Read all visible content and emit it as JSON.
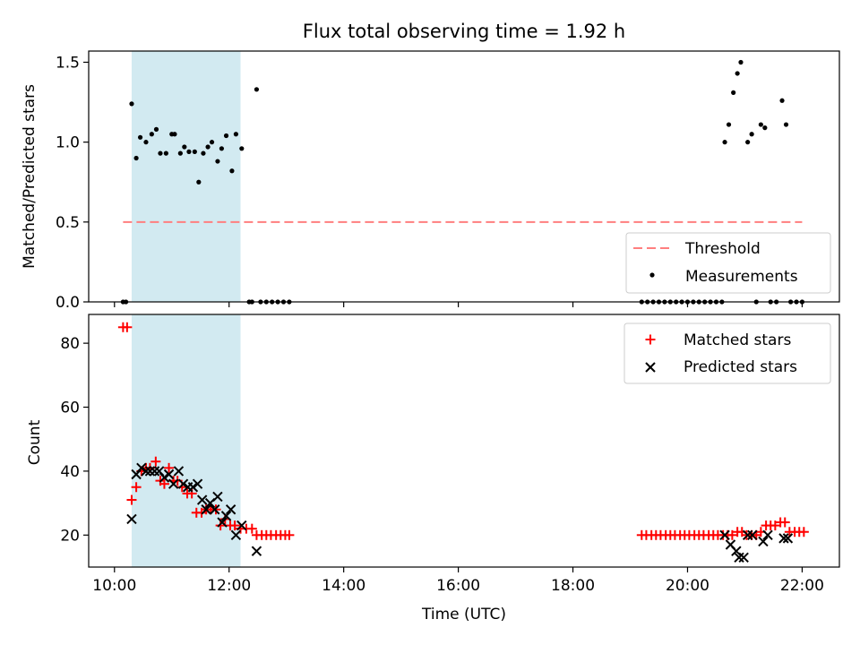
{
  "title": "Flux total observing time = 1.92 h",
  "colors": {
    "threshold": "#ff7f7f",
    "measurement": "#000000",
    "matched": "#ff0000",
    "predicted": "#000000",
    "span": "#add8e6"
  },
  "chart_data": [
    {
      "type": "scatter",
      "panel": "top",
      "xlabel": "",
      "ylabel": "Matched/Predicted stars",
      "ylim": [
        0,
        1.57
      ],
      "yticks": [
        0.0,
        0.5,
        1.0,
        1.5
      ],
      "ytick_labels": [
        "0.0",
        "0.5",
        "1.0",
        "1.5"
      ],
      "xlim_hours": [
        9.55,
        22.65
      ],
      "xticks_hours": [
        10,
        12,
        14,
        16,
        18,
        20,
        22
      ],
      "highlight_span_hours": [
        10.3,
        12.2
      ],
      "legend_position": "lower right",
      "legend": [
        "Threshold",
        "Measurements"
      ],
      "threshold": {
        "name": "Threshold",
        "y": 0.5,
        "x_range_hours": [
          10.15,
          22.0
        ]
      },
      "measurements": {
        "name": "Measurements",
        "points": [
          [
            10.15,
            0.0
          ],
          [
            10.2,
            0.0
          ],
          [
            10.3,
            1.24
          ],
          [
            10.38,
            0.9
          ],
          [
            10.45,
            1.03
          ],
          [
            10.55,
            1.0
          ],
          [
            10.65,
            1.05
          ],
          [
            10.73,
            1.08
          ],
          [
            10.8,
            0.93
          ],
          [
            10.9,
            0.93
          ],
          [
            11.0,
            1.05
          ],
          [
            11.05,
            1.05
          ],
          [
            11.15,
            0.93
          ],
          [
            11.22,
            0.97
          ],
          [
            11.3,
            0.94
          ],
          [
            11.4,
            0.94
          ],
          [
            11.47,
            0.75
          ],
          [
            11.55,
            0.93
          ],
          [
            11.63,
            0.97
          ],
          [
            11.7,
            1.0
          ],
          [
            11.8,
            0.88
          ],
          [
            11.87,
            0.96
          ],
          [
            11.95,
            1.04
          ],
          [
            12.05,
            0.82
          ],
          [
            12.12,
            1.05
          ],
          [
            12.22,
            0.96
          ],
          [
            12.35,
            0.0
          ],
          [
            12.4,
            0.0
          ],
          [
            12.48,
            1.33
          ],
          [
            12.55,
            0.0
          ],
          [
            12.65,
            0.0
          ],
          [
            12.75,
            0.0
          ],
          [
            12.85,
            0.0
          ],
          [
            12.95,
            0.0
          ],
          [
            13.05,
            0.0
          ],
          [
            19.2,
            0.0
          ],
          [
            19.3,
            0.0
          ],
          [
            19.4,
            0.0
          ],
          [
            19.5,
            0.0
          ],
          [
            19.6,
            0.0
          ],
          [
            19.7,
            0.0
          ],
          [
            19.8,
            0.0
          ],
          [
            19.9,
            0.0
          ],
          [
            20.0,
            0.0
          ],
          [
            20.1,
            0.0
          ],
          [
            20.2,
            0.0
          ],
          [
            20.3,
            0.0
          ],
          [
            20.4,
            0.0
          ],
          [
            20.5,
            0.0
          ],
          [
            20.6,
            0.0
          ],
          [
            20.65,
            1.0
          ],
          [
            20.72,
            1.11
          ],
          [
            20.8,
            1.31
          ],
          [
            20.87,
            1.43
          ],
          [
            20.93,
            1.5
          ],
          [
            21.05,
            1.0
          ],
          [
            21.12,
            1.05
          ],
          [
            21.2,
            0.0
          ],
          [
            21.28,
            1.11
          ],
          [
            21.35,
            1.09
          ],
          [
            21.45,
            0.0
          ],
          [
            21.55,
            0.0
          ],
          [
            21.65,
            1.26
          ],
          [
            21.72,
            1.11
          ],
          [
            21.8,
            0.0
          ],
          [
            21.9,
            0.0
          ],
          [
            22.0,
            0.0
          ]
        ]
      }
    },
    {
      "type": "scatter",
      "panel": "bottom",
      "xlabel": "Time (UTC)",
      "ylabel": "Count",
      "ylim": [
        10,
        89
      ],
      "yticks": [
        20,
        40,
        60,
        80
      ],
      "ytick_labels": [
        "20",
        "40",
        "60",
        "80"
      ],
      "xlim_hours": [
        9.55,
        22.65
      ],
      "xticks_hours": [
        10,
        12,
        14,
        16,
        18,
        20,
        22
      ],
      "xtick_labels": [
        "10:00",
        "12:00",
        "14:00",
        "16:00",
        "18:00",
        "20:00",
        "22:00"
      ],
      "highlight_span_hours": [
        10.3,
        12.2
      ],
      "legend_position": "upper right",
      "legend": [
        "Matched stars",
        "Predicted stars"
      ],
      "series": [
        {
          "name": "Matched stars",
          "marker": "plus",
          "points": [
            [
              10.15,
              85
            ],
            [
              10.22,
              85
            ],
            [
              10.3,
              31
            ],
            [
              10.38,
              35
            ],
            [
              10.47,
              40
            ],
            [
              10.55,
              41
            ],
            [
              10.62,
              41
            ],
            [
              10.72,
              43
            ],
            [
              10.8,
              37
            ],
            [
              10.87,
              36
            ],
            [
              10.95,
              41
            ],
            [
              11.03,
              37
            ],
            [
              11.1,
              37
            ],
            [
              11.18,
              35
            ],
            [
              11.27,
              33
            ],
            [
              11.35,
              33
            ],
            [
              11.43,
              27
            ],
            [
              11.52,
              27
            ],
            [
              11.6,
              28
            ],
            [
              11.68,
              28
            ],
            [
              11.77,
              28
            ],
            [
              11.85,
              23
            ],
            [
              11.93,
              25
            ],
            [
              12.02,
              23
            ],
            [
              12.1,
              23
            ],
            [
              12.2,
              22
            ],
            [
              12.3,
              22
            ],
            [
              12.4,
              22
            ],
            [
              12.48,
              20
            ],
            [
              12.57,
              20
            ],
            [
              12.65,
              20
            ],
            [
              12.73,
              20
            ],
            [
              12.82,
              20
            ],
            [
              12.9,
              20
            ],
            [
              12.98,
              20
            ],
            [
              13.05,
              20
            ],
            [
              19.2,
              20
            ],
            [
              19.28,
              20
            ],
            [
              19.37,
              20
            ],
            [
              19.45,
              20
            ],
            [
              19.53,
              20
            ],
            [
              19.62,
              20
            ],
            [
              19.7,
              20
            ],
            [
              19.78,
              20
            ],
            [
              19.87,
              20
            ],
            [
              19.95,
              20
            ],
            [
              20.03,
              20
            ],
            [
              20.12,
              20
            ],
            [
              20.2,
              20
            ],
            [
              20.28,
              20
            ],
            [
              20.37,
              20
            ],
            [
              20.45,
              20
            ],
            [
              20.53,
              20
            ],
            [
              20.62,
              20
            ],
            [
              20.7,
              20
            ],
            [
              20.78,
              20
            ],
            [
              20.87,
              21
            ],
            [
              20.95,
              21
            ],
            [
              21.03,
              20
            ],
            [
              21.12,
              20
            ],
            [
              21.2,
              20
            ],
            [
              21.28,
              21
            ],
            [
              21.37,
              23
            ],
            [
              21.45,
              23
            ],
            [
              21.53,
              23
            ],
            [
              21.62,
              24
            ],
            [
              21.7,
              24
            ],
            [
              21.78,
              21
            ],
            [
              21.87,
              21
            ],
            [
              21.95,
              21
            ],
            [
              22.03,
              21
            ]
          ]
        },
        {
          "name": "Predicted stars",
          "marker": "x",
          "points": [
            [
              10.3,
              25
            ],
            [
              10.38,
              39
            ],
            [
              10.47,
              41
            ],
            [
              10.55,
              40
            ],
            [
              10.62,
              40
            ],
            [
              10.7,
              40
            ],
            [
              10.78,
              40
            ],
            [
              10.87,
              38
            ],
            [
              10.95,
              39
            ],
            [
              11.03,
              36
            ],
            [
              11.12,
              40
            ],
            [
              11.2,
              36
            ],
            [
              11.28,
              35
            ],
            [
              11.37,
              35
            ],
            [
              11.45,
              36
            ],
            [
              11.53,
              31
            ],
            [
              11.6,
              28
            ],
            [
              11.67,
              30
            ],
            [
              11.75,
              28
            ],
            [
              11.8,
              32
            ],
            [
              11.88,
              24
            ],
            [
              11.95,
              26
            ],
            [
              12.03,
              28
            ],
            [
              12.12,
              20
            ],
            [
              12.22,
              23
            ],
            [
              12.48,
              15
            ],
            [
              20.65,
              20
            ],
            [
              20.75,
              17
            ],
            [
              20.85,
              15
            ],
            [
              20.9,
              13
            ],
            [
              20.98,
              13
            ],
            [
              21.05,
              20
            ],
            [
              21.13,
              20
            ],
            [
              21.32,
              18
            ],
            [
              21.4,
              20
            ],
            [
              21.68,
              19
            ],
            [
              21.75,
              19
            ]
          ]
        }
      ]
    }
  ]
}
